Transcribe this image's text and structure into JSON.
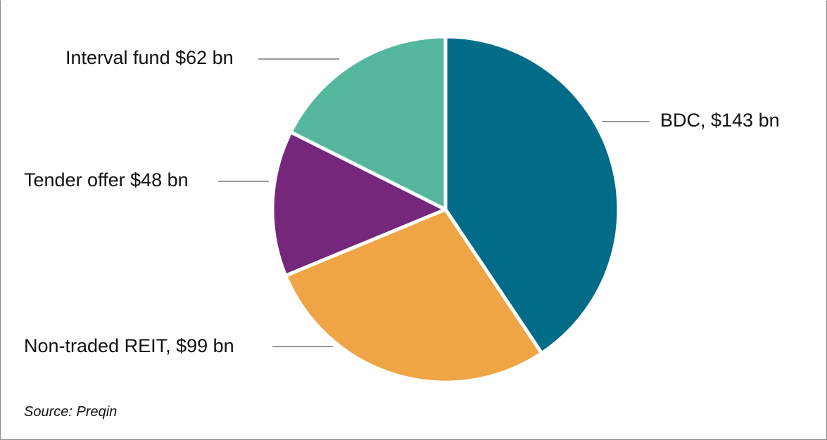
{
  "chart_data": {
    "type": "pie",
    "title": "",
    "unit": "$ bn",
    "start_angle_deg": 0,
    "direction": "clockwise",
    "slices": [
      {
        "name": "BDC",
        "value": 143,
        "label": "BDC, $143 bn",
        "color": "#006C87"
      },
      {
        "name": "Non-traded REIT",
        "value": 99,
        "label": "Non-traded REIT, $99 bn",
        "color": "#EFA545"
      },
      {
        "name": "Tender offer",
        "value": 48,
        "label": "Tender offer $48 bn",
        "color": "#74277B"
      },
      {
        "name": "Interval fund",
        "value": 62,
        "label": "Interval fund $62 bn",
        "color": "#55B89E"
      }
    ],
    "categories": [
      "BDC",
      "Non-traded REIT",
      "Tender offer",
      "Interval fund"
    ],
    "values": [
      143,
      99,
      48,
      62
    ],
    "legend": "none (leader-line labels)",
    "source": "Source: Preqin"
  },
  "labels": {
    "bdc": "BDC, $143 bn",
    "reit": "Non-traded REIT, $99 bn",
    "tender": "Tender offer $48 bn",
    "interval": "Interval fund $62 bn"
  },
  "source": "Source: Preqin",
  "colors": {
    "leader_line": "#9a9a9a",
    "separator": "#ffffff",
    "border": "#8a8a8a"
  }
}
